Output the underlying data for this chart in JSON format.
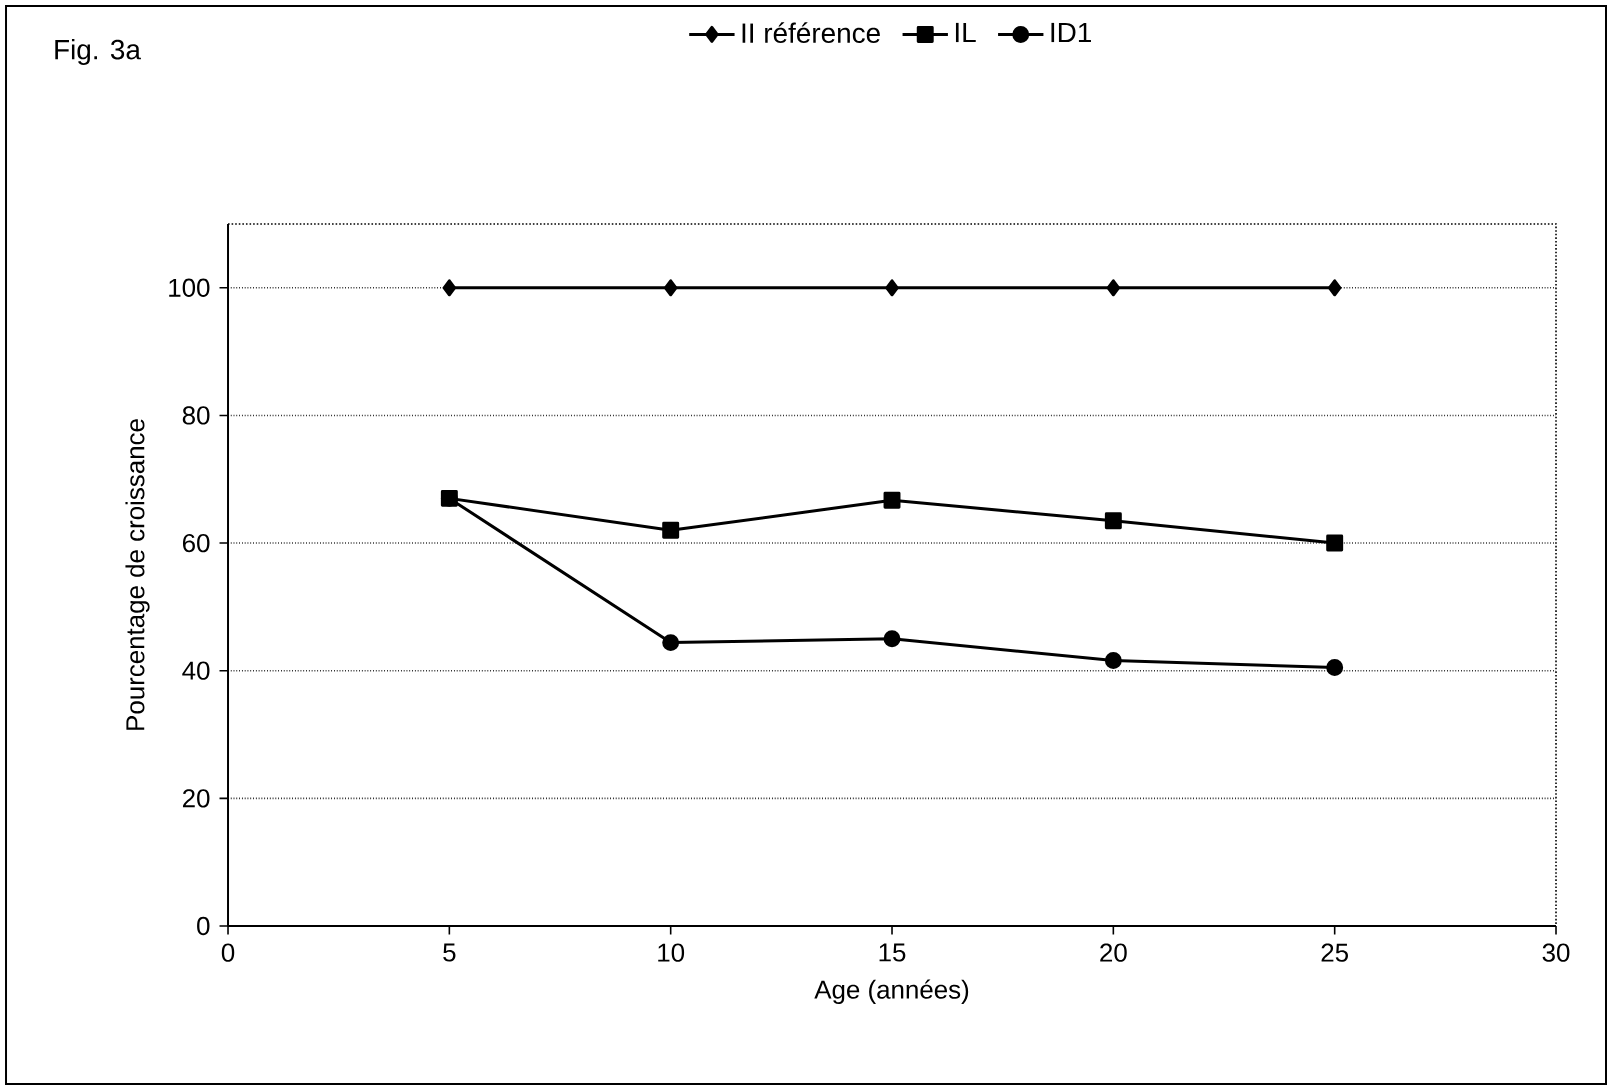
{
  "chart_data": {
    "type": "line",
    "title": "Fig. 3a",
    "xlabel": "Age (années)",
    "ylabel": "Pourcentage de croissance",
    "x": [
      5,
      10,
      15,
      20,
      25
    ],
    "series": [
      {
        "name": "II référence",
        "color": "#000000",
        "marker": "diamond",
        "values": [
          100,
          100,
          100,
          100,
          100
        ]
      },
      {
        "name": "IL",
        "color": "#000000",
        "marker": "square",
        "values": [
          67,
          62,
          66.7,
          63.5,
          60
        ]
      },
      {
        "name": "ID1",
        "color": "#000000",
        "marker": "circle",
        "values": [
          67,
          44.4,
          45,
          41.6,
          40.5
        ]
      }
    ],
    "xlim": [
      0,
      30
    ],
    "xticks": [
      0,
      5,
      10,
      15,
      20,
      25,
      30
    ],
    "ylim": [
      0,
      110
    ],
    "yticks": [
      0,
      20,
      40,
      60,
      80,
      100
    ],
    "grid": "y",
    "legend": "top",
    "line_style": "solid"
  }
}
